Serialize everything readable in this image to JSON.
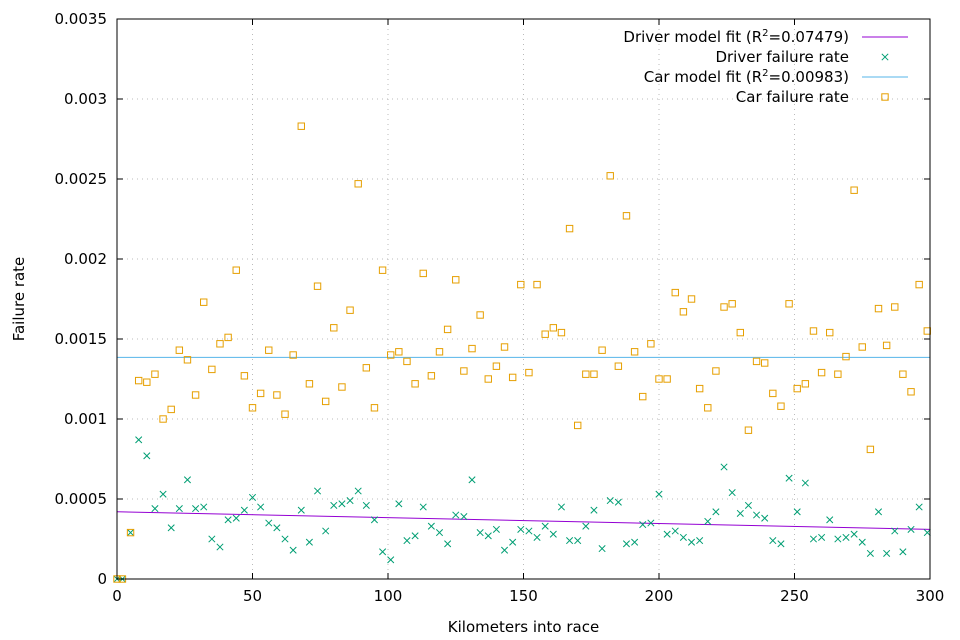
{
  "chart_data": {
    "type": "scatter",
    "xlabel": "Kilometers into race",
    "ylabel": "Failure rate",
    "xlim": [
      0,
      300
    ],
    "ylim": [
      0,
      0.0035
    ],
    "xticks": [
      "0",
      "50",
      "100",
      "150",
      "200",
      "250",
      "300"
    ],
    "yticks": [
      "0",
      "0.0005",
      "0.001",
      "0.0015",
      "0.002",
      "0.0025",
      "0.003",
      "0.0035"
    ],
    "grid": true,
    "legend_position": "top-right",
    "legend": [
      {
        "pre": "Driver model fit (R",
        "sup": "2",
        "post": "=0.07479)"
      },
      {
        "pre": "Driver failure rate",
        "sup": "",
        "post": ""
      },
      {
        "pre": "Car model fit (R",
        "sup": "2",
        "post": "=0.00983)"
      },
      {
        "pre": "Car failure rate",
        "sup": "",
        "post": ""
      }
    ],
    "colors": {
      "driver_fit": "#9400d3",
      "driver_points": "#009e73",
      "car_fit": "#56b4e9",
      "car_points": "#e69f00"
    },
    "fits": {
      "driver": {
        "x": [
          0,
          300
        ],
        "y": [
          0.00042,
          0.00031
        ]
      },
      "car": {
        "x": [
          0,
          300
        ],
        "y": [
          0.001385,
          0.001385
        ]
      }
    },
    "series": [
      {
        "kind": "driver_points",
        "marker": "cross",
        "points": [
          [
            0,
            0
          ],
          [
            2,
            0
          ],
          [
            5,
            0.00029
          ],
          [
            8,
            0.00087
          ],
          [
            11,
            0.00077
          ],
          [
            14,
            0.00044
          ],
          [
            17,
            0.00053
          ],
          [
            20,
            0.00032
          ],
          [
            23,
            0.00044
          ],
          [
            26,
            0.00062
          ],
          [
            29,
            0.00044
          ],
          [
            32,
            0.00045
          ],
          [
            35,
            0.00025
          ],
          [
            38,
            0.0002
          ],
          [
            41,
            0.00037
          ],
          [
            44,
            0.00038
          ],
          [
            47,
            0.00043
          ],
          [
            50,
            0.00051
          ],
          [
            53,
            0.00045
          ],
          [
            56,
            0.00035
          ],
          [
            59,
            0.00032
          ],
          [
            62,
            0.00025
          ],
          [
            65,
            0.00018
          ],
          [
            68,
            0.00043
          ],
          [
            71,
            0.00023
          ],
          [
            74,
            0.00055
          ],
          [
            77,
            0.0003
          ],
          [
            80,
            0.00046
          ],
          [
            83,
            0.00047
          ],
          [
            86,
            0.00049
          ],
          [
            89,
            0.00055
          ],
          [
            92,
            0.00046
          ],
          [
            95,
            0.00037
          ],
          [
            98,
            0.00017
          ],
          [
            101,
            0.00012
          ],
          [
            104,
            0.00047
          ],
          [
            107,
            0.00024
          ],
          [
            110,
            0.00027
          ],
          [
            113,
            0.00045
          ],
          [
            116,
            0.00033
          ],
          [
            119,
            0.00029
          ],
          [
            122,
            0.00022
          ],
          [
            125,
            0.0004
          ],
          [
            128,
            0.00039
          ],
          [
            131,
            0.00062
          ],
          [
            134,
            0.00029
          ],
          [
            137,
            0.00027
          ],
          [
            140,
            0.00031
          ],
          [
            143,
            0.00018
          ],
          [
            146,
            0.00023
          ],
          [
            149,
            0.00031
          ],
          [
            152,
            0.0003
          ],
          [
            155,
            0.00026
          ],
          [
            158,
            0.00033
          ],
          [
            161,
            0.00028
          ],
          [
            164,
            0.00045
          ],
          [
            167,
            0.00024
          ],
          [
            170,
            0.00024
          ],
          [
            173,
            0.00033
          ],
          [
            176,
            0.00043
          ],
          [
            179,
            0.00019
          ],
          [
            182,
            0.00049
          ],
          [
            185,
            0.00048
          ],
          [
            188,
            0.00022
          ],
          [
            191,
            0.00023
          ],
          [
            194,
            0.00034
          ],
          [
            197,
            0.00035
          ],
          [
            200,
            0.00053
          ],
          [
            203,
            0.00028
          ],
          [
            206,
            0.0003
          ],
          [
            209,
            0.00026
          ],
          [
            212,
            0.00023
          ],
          [
            215,
            0.00024
          ],
          [
            218,
            0.00036
          ],
          [
            221,
            0.00042
          ],
          [
            224,
            0.0007
          ],
          [
            227,
            0.00054
          ],
          [
            230,
            0.00041
          ],
          [
            233,
            0.00046
          ],
          [
            236,
            0.0004
          ],
          [
            239,
            0.00038
          ],
          [
            242,
            0.00024
          ],
          [
            245,
            0.00022
          ],
          [
            248,
            0.00063
          ],
          [
            251,
            0.00042
          ],
          [
            254,
            0.0006
          ],
          [
            257,
            0.00025
          ],
          [
            260,
            0.00026
          ],
          [
            263,
            0.00037
          ],
          [
            266,
            0.00025
          ],
          [
            269,
            0.00026
          ],
          [
            272,
            0.00028
          ],
          [
            275,
            0.00023
          ],
          [
            278,
            0.00016
          ],
          [
            281,
            0.00042
          ],
          [
            284,
            0.00016
          ],
          [
            287,
            0.0003
          ],
          [
            290,
            0.00017
          ],
          [
            293,
            0.00031
          ],
          [
            296,
            0.00045
          ],
          [
            299,
            0.00029
          ]
        ]
      },
      {
        "kind": "car_points",
        "marker": "square",
        "points": [
          [
            0,
            0
          ],
          [
            2,
            0
          ],
          [
            5,
            0.00029
          ],
          [
            8,
            0.00124
          ],
          [
            11,
            0.00123
          ],
          [
            14,
            0.00128
          ],
          [
            17,
            0.001
          ],
          [
            20,
            0.00106
          ],
          [
            23,
            0.00143
          ],
          [
            26,
            0.00137
          ],
          [
            29,
            0.00115
          ],
          [
            32,
            0.00173
          ],
          [
            35,
            0.00131
          ],
          [
            38,
            0.00147
          ],
          [
            41,
            0.00151
          ],
          [
            44,
            0.00193
          ],
          [
            47,
            0.00127
          ],
          [
            50,
            0.00107
          ],
          [
            53,
            0.00116
          ],
          [
            56,
            0.00143
          ],
          [
            59,
            0.00115
          ],
          [
            62,
            0.00103
          ],
          [
            65,
            0.0014
          ],
          [
            68,
            0.00283
          ],
          [
            71,
            0.00122
          ],
          [
            74,
            0.00183
          ],
          [
            77,
            0.00111
          ],
          [
            80,
            0.00157
          ],
          [
            83,
            0.0012
          ],
          [
            86,
            0.00168
          ],
          [
            89,
            0.00247
          ],
          [
            92,
            0.00132
          ],
          [
            95,
            0.00107
          ],
          [
            98,
            0.00193
          ],
          [
            101,
            0.0014
          ],
          [
            104,
            0.00142
          ],
          [
            107,
            0.00136
          ],
          [
            110,
            0.00122
          ],
          [
            113,
            0.00191
          ],
          [
            116,
            0.00127
          ],
          [
            119,
            0.00142
          ],
          [
            122,
            0.00156
          ],
          [
            125,
            0.00187
          ],
          [
            128,
            0.0013
          ],
          [
            131,
            0.00144
          ],
          [
            134,
            0.00165
          ],
          [
            137,
            0.00125
          ],
          [
            140,
            0.00133
          ],
          [
            143,
            0.00145
          ],
          [
            146,
            0.00126
          ],
          [
            149,
            0.00184
          ],
          [
            152,
            0.00129
          ],
          [
            155,
            0.00184
          ],
          [
            158,
            0.00153
          ],
          [
            161,
            0.00157
          ],
          [
            164,
            0.00154
          ],
          [
            167,
            0.00219
          ],
          [
            170,
            0.00096
          ],
          [
            173,
            0.00128
          ],
          [
            176,
            0.00128
          ],
          [
            179,
            0.00143
          ],
          [
            182,
            0.00252
          ],
          [
            185,
            0.00133
          ],
          [
            188,
            0.00227
          ],
          [
            191,
            0.00142
          ],
          [
            194,
            0.00114
          ],
          [
            197,
            0.00147
          ],
          [
            200,
            0.00125
          ],
          [
            203,
            0.00125
          ],
          [
            206,
            0.00179
          ],
          [
            209,
            0.00167
          ],
          [
            212,
            0.00175
          ],
          [
            215,
            0.00119
          ],
          [
            218,
            0.00107
          ],
          [
            221,
            0.0013
          ],
          [
            224,
            0.0017
          ],
          [
            227,
            0.00172
          ],
          [
            230,
            0.00154
          ],
          [
            233,
            0.00093
          ],
          [
            236,
            0.00136
          ],
          [
            239,
            0.00135
          ],
          [
            242,
            0.00116
          ],
          [
            245,
            0.00108
          ],
          [
            248,
            0.00172
          ],
          [
            251,
            0.00119
          ],
          [
            254,
            0.00122
          ],
          [
            257,
            0.00155
          ],
          [
            260,
            0.00129
          ],
          [
            263,
            0.00154
          ],
          [
            266,
            0.00128
          ],
          [
            269,
            0.00139
          ],
          [
            272,
            0.00243
          ],
          [
            275,
            0.00145
          ],
          [
            278,
            0.00081
          ],
          [
            281,
            0.00169
          ],
          [
            284,
            0.00146
          ],
          [
            287,
            0.0017
          ],
          [
            290,
            0.00128
          ],
          [
            293,
            0.00117
          ],
          [
            296,
            0.00184
          ],
          [
            299,
            0.00155
          ]
        ]
      }
    ]
  }
}
